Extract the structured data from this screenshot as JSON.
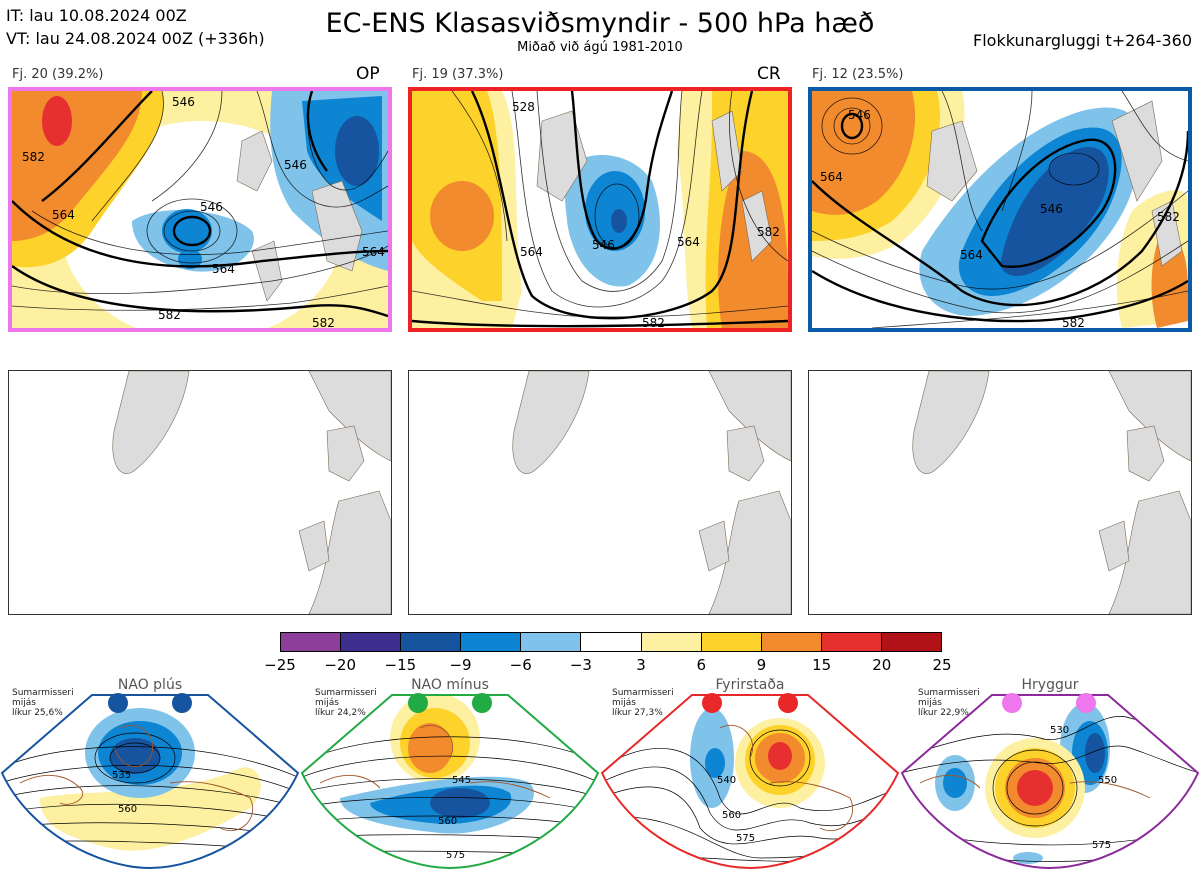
{
  "header": {
    "initial_time": "IT: lau 10.08.2024 00Z",
    "valid_time": "VT: lau 24.08.2024 00Z  (+336h)",
    "title": "EC-ENS Klasasviðsmyndir - 500 hPa hæð",
    "subtitle": "Miðað við ágú 1981-2010",
    "window": "Flokkunargluggi t+264-360"
  },
  "clusters": [
    {
      "label": "Fj. 20 (39.2%)",
      "tag": "OP",
      "border_color": "#ee77ee",
      "contour_labels": [
        "546",
        "546",
        "564",
        "564",
        "582",
        "582",
        "546",
        "564",
        "582"
      ]
    },
    {
      "label": "Fj. 19 (37.3%)",
      "tag": "CR",
      "border_color": "#ee2222",
      "contour_labels": [
        "528",
        "546",
        "564",
        "564",
        "582",
        "582"
      ]
    },
    {
      "label": "Fj. 12 (23.5%)",
      "tag": "",
      "border_color": "#0b5aa8",
      "contour_labels": [
        "546",
        "564",
        "546",
        "564",
        "582",
        "582"
      ]
    }
  ],
  "colorbar": {
    "ticks": [
      "−25",
      "−20",
      "−15",
      "−9",
      "−6",
      "−3",
      "3",
      "6",
      "9",
      "15",
      "20",
      "25"
    ],
    "colors": [
      "#8b3f9a",
      "#3e2f8f",
      "#1654a0",
      "#0d85d2",
      "#7fc3ea",
      "#ffffff",
      "#fdf0a0",
      "#fdd22a",
      "#f28a2e",
      "#e63030",
      "#b01218"
    ]
  },
  "regimes": [
    {
      "title": "NAO plús",
      "note_line1": "Sumarmisseri",
      "note_line2": "mijás",
      "note_line3": "líkur 25,6%",
      "dot_color": "#1654a0",
      "border_color": "#1654a0",
      "labels": [
        "535",
        "560"
      ]
    },
    {
      "title": "NAO mínus",
      "note_line1": "Sumarmisseri",
      "note_line2": "mijás",
      "note_line3": "líkur 24,2%",
      "dot_color": "#22aa44",
      "border_color": "#22aa44",
      "labels": [
        "545",
        "560",
        "575"
      ]
    },
    {
      "title": "Fyrirstaða",
      "note_line1": "Sumarmisseri",
      "note_line2": "mijás",
      "note_line3": "líkur 27,3%",
      "dot_color": "#e82828",
      "border_color": "#e82828",
      "labels": [
        "540",
        "560",
        "575"
      ]
    },
    {
      "title": "Hryggur",
      "note_line1": "Sumarmisseri",
      "note_line2": "mijás",
      "note_line3": "líkur 22,9%",
      "dot_color": "#ee77ee",
      "border_color": "#8b2a9a",
      "labels": [
        "530",
        "550",
        "575"
      ]
    }
  ]
}
